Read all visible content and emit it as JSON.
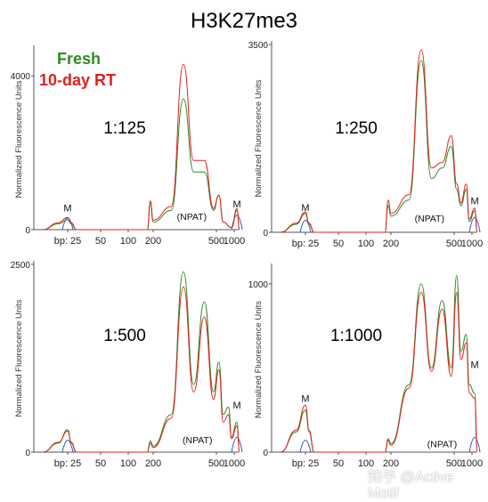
{
  "title": "H3K27me3",
  "legend": [
    {
      "label": "Fresh",
      "color": "#2e8b1f"
    },
    {
      "label": "10-day RT",
      "color": "#e02020"
    }
  ],
  "watermark": "知乎 @Active Motif",
  "colors": {
    "fresh": "#2e8b1f",
    "rt": "#e02020",
    "marker": "#3050c8",
    "axis": "#555555"
  },
  "chart_data": [
    {
      "type": "line",
      "dilution": "1:125",
      "ylabel": "Normalized Fluorescence Units",
      "xlabel": "bp",
      "y_ticks": [
        "4000",
        "0"
      ],
      "ylim": [
        0,
        4700
      ],
      "x_ticks": [
        {
          "label": "bp: 25",
          "bp": 25
        },
        {
          "label": "50",
          "bp": 50
        },
        {
          "label": "100",
          "bp": 100
        },
        {
          "label": "200",
          "bp": 200
        },
        {
          "label": "500",
          "bp": 500
        },
        {
          "label": "1000",
          "bp": 1000
        }
      ],
      "annotations": [
        {
          "text": "M",
          "bp": 25,
          "y": 480
        },
        {
          "text": "(NPAT)",
          "bp": 350,
          "y": 250
        },
        {
          "text": "M",
          "bp": 1050,
          "y": 580
        }
      ],
      "series": [
        {
          "name": "Fresh",
          "points": [
            [
              20,
              0
            ],
            [
              23,
              150
            ],
            [
              25,
              260
            ],
            [
              27,
              150
            ],
            [
              30,
              0
            ],
            [
              170,
              0
            ],
            [
              185,
              700
            ],
            [
              200,
              200
            ],
            [
              260,
              500
            ],
            [
              310,
              3400
            ],
            [
              360,
              1500
            ],
            [
              420,
              1500
            ],
            [
              480,
              500
            ],
            [
              550,
              900
            ],
            [
              650,
              200
            ],
            [
              900,
              50
            ],
            [
              1050,
              500
            ],
            [
              1100,
              0
            ]
          ]
        },
        {
          "name": "10-day RT",
          "points": [
            [
              20,
              0
            ],
            [
              23,
              180
            ],
            [
              25,
              320
            ],
            [
              27,
              180
            ],
            [
              30,
              0
            ],
            [
              170,
              0
            ],
            [
              185,
              750
            ],
            [
              200,
              250
            ],
            [
              260,
              600
            ],
            [
              310,
              4300
            ],
            [
              360,
              1800
            ],
            [
              420,
              1800
            ],
            [
              480,
              550
            ],
            [
              550,
              900
            ],
            [
              650,
              200
            ],
            [
              900,
              50
            ],
            [
              1050,
              550
            ],
            [
              1100,
              0
            ]
          ]
        }
      ]
    },
    {
      "type": "line",
      "dilution": "1:250",
      "ylabel": "Normalized Fluorescence Units",
      "xlabel": "bp",
      "y_ticks": [
        "3500",
        "0"
      ],
      "ylim": [
        0,
        3500
      ],
      "x_ticks": [
        {
          "label": "bp: 25",
          "bp": 25
        },
        {
          "label": "50",
          "bp": 50
        },
        {
          "label": "100",
          "bp": 100
        },
        {
          "label": "200",
          "bp": 200
        },
        {
          "label": "500",
          "bp": 500
        },
        {
          "label": "1000",
          "bp": 1000
        }
      ],
      "annotations": [
        {
          "text": "M",
          "bp": 25,
          "y": 400
        },
        {
          "text": "(NPAT)",
          "bp": 350,
          "y": 200
        },
        {
          "text": "M",
          "bp": 1050,
          "y": 520
        }
      ],
      "series": [
        {
          "name": "Fresh",
          "points": [
            [
              20,
              0
            ],
            [
              23,
              150
            ],
            [
              25,
              350
            ],
            [
              27,
              150
            ],
            [
              30,
              0
            ],
            [
              170,
              0
            ],
            [
              185,
              500
            ],
            [
              200,
              300
            ],
            [
              260,
              600
            ],
            [
              310,
              3200
            ],
            [
              360,
              1000
            ],
            [
              420,
              1200
            ],
            [
              480,
              1600
            ],
            [
              550,
              800
            ],
            [
              650,
              500
            ],
            [
              800,
              800
            ],
            [
              900,
              200
            ],
            [
              1050,
              400
            ],
            [
              1100,
              0
            ]
          ]
        },
        {
          "name": "10-day RT",
          "points": [
            [
              20,
              0
            ],
            [
              23,
              170
            ],
            [
              25,
              380
            ],
            [
              27,
              170
            ],
            [
              30,
              0
            ],
            [
              170,
              0
            ],
            [
              185,
              600
            ],
            [
              200,
              350
            ],
            [
              260,
              700
            ],
            [
              310,
              3400
            ],
            [
              360,
              1200
            ],
            [
              420,
              1300
            ],
            [
              480,
              1800
            ],
            [
              550,
              900
            ],
            [
              650,
              550
            ],
            [
              800,
              900
            ],
            [
              900,
              250
            ],
            [
              1050,
              450
            ],
            [
              1100,
              0
            ]
          ]
        }
      ]
    },
    {
      "type": "line",
      "dilution": "1:500",
      "ylabel": "Normalized Fluorescence Units",
      "xlabel": "bp",
      "y_ticks": [
        "2500",
        "0"
      ],
      "ylim": [
        0,
        2500
      ],
      "x_ticks": [
        {
          "label": "bp: 25",
          "bp": 25
        },
        {
          "label": "50",
          "bp": 50
        },
        {
          "label": "100",
          "bp": 100
        },
        {
          "label": "200",
          "bp": 200
        },
        {
          "label": "500",
          "bp": 500
        },
        {
          "label": "1000",
          "bp": 1000
        }
      ],
      "annotations": [
        {
          "text": "(NPAT)",
          "bp": 380,
          "y": 120
        },
        {
          "text": "M",
          "bp": 1050,
          "y": 580
        }
      ],
      "series": [
        {
          "name": "Fresh",
          "points": [
            [
              20,
              0
            ],
            [
              23,
              120
            ],
            [
              25,
              300
            ],
            [
              27,
              120
            ],
            [
              30,
              0
            ],
            [
              170,
              0
            ],
            [
              185,
              150
            ],
            [
              200,
              80
            ],
            [
              260,
              500
            ],
            [
              310,
              2400
            ],
            [
              360,
              900
            ],
            [
              420,
              2000
            ],
            [
              480,
              800
            ],
            [
              550,
              1200
            ],
            [
              650,
              500
            ],
            [
              800,
              600
            ],
            [
              900,
              200
            ],
            [
              1050,
              400
            ],
            [
              1100,
              0
            ]
          ]
        },
        {
          "name": "10-day RT",
          "points": [
            [
              20,
              0
            ],
            [
              23,
              130
            ],
            [
              25,
              280
            ],
            [
              27,
              130
            ],
            [
              30,
              0
            ],
            [
              170,
              0
            ],
            [
              185,
              120
            ],
            [
              200,
              60
            ],
            [
              260,
              450
            ],
            [
              310,
              2200
            ],
            [
              360,
              800
            ],
            [
              420,
              1800
            ],
            [
              480,
              700
            ],
            [
              550,
              1100
            ],
            [
              650,
              400
            ],
            [
              800,
              500
            ],
            [
              900,
              180
            ],
            [
              1050,
              350
            ],
            [
              1100,
              0
            ]
          ]
        }
      ]
    },
    {
      "type": "line",
      "dilution": "1:1000",
      "ylabel": "Normalized Fluorescence Units",
      "xlabel": "bp",
      "y_ticks": [
        "1000",
        "0"
      ],
      "ylim": [
        0,
        1100
      ],
      "x_ticks": [
        {
          "label": "bp: 25",
          "bp": 25
        },
        {
          "label": "50",
          "bp": 50
        },
        {
          "label": "100",
          "bp": 100
        },
        {
          "label": "200",
          "bp": 200
        },
        {
          "label": "500",
          "bp": 500
        },
        {
          "label": "1000",
          "bp": 1000
        }
      ],
      "annotations": [
        {
          "text": "M",
          "bp": 25,
          "y": 300
        },
        {
          "text": "(NPAT)",
          "bp": 420,
          "y": 30
        },
        {
          "text": "M",
          "bp": 1050,
          "y": 500
        }
      ],
      "series": [
        {
          "name": "Fresh",
          "points": [
            [
              20,
              0
            ],
            [
              23,
              120
            ],
            [
              25,
              250
            ],
            [
              27,
              120
            ],
            [
              30,
              0
            ],
            [
              170,
              0
            ],
            [
              185,
              80
            ],
            [
              200,
              50
            ],
            [
              260,
              400
            ],
            [
              310,
              1000
            ],
            [
              360,
              500
            ],
            [
              420,
              900
            ],
            [
              480,
              500
            ],
            [
              550,
              1050
            ],
            [
              650,
              600
            ],
            [
              800,
              700
            ],
            [
              900,
              400
            ],
            [
              1050,
              350
            ],
            [
              1100,
              0
            ]
          ]
        },
        {
          "name": "10-day RT",
          "points": [
            [
              20,
              0
            ],
            [
              23,
              130
            ],
            [
              25,
              280
            ],
            [
              27,
              130
            ],
            [
              30,
              0
            ],
            [
              170,
              0
            ],
            [
              185,
              70
            ],
            [
              200,
              40
            ],
            [
              260,
              380
            ],
            [
              310,
              950
            ],
            [
              360,
              480
            ],
            [
              420,
              850
            ],
            [
              480,
              450
            ],
            [
              550,
              950
            ],
            [
              650,
              550
            ],
            [
              800,
              650
            ],
            [
              900,
              350
            ],
            [
              1050,
              320
            ],
            [
              1100,
              0
            ]
          ]
        }
      ]
    }
  ]
}
